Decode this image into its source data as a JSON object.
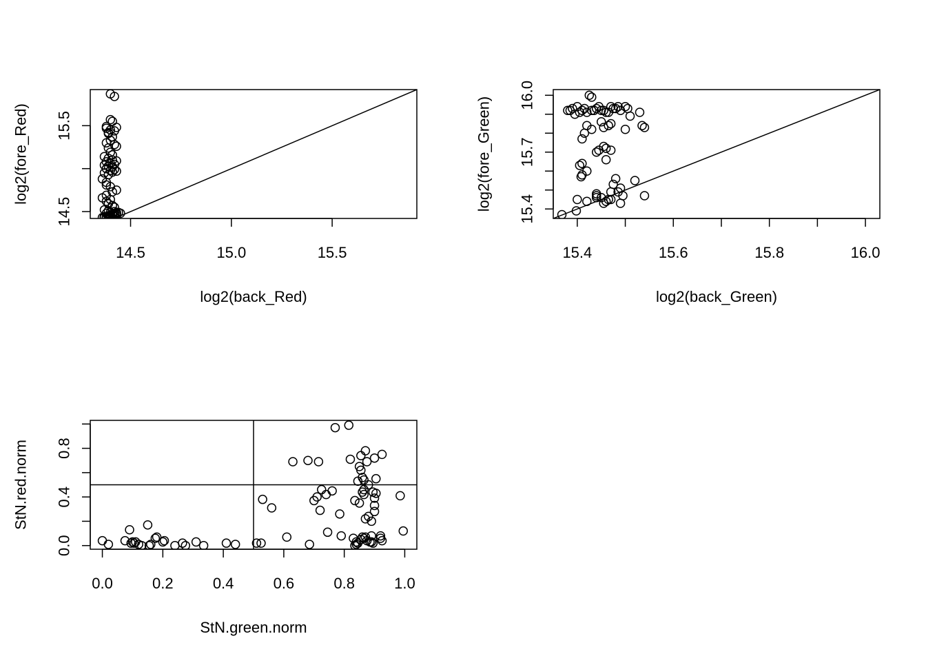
{
  "chart_data": [
    {
      "type": "scatter",
      "title": "",
      "xlabel": "log2(back_Red)",
      "ylabel": "log2(fore_Red)",
      "xlim": [
        14.3,
        15.92
      ],
      "ylim": [
        14.42,
        15.92
      ],
      "xticks": [
        14.5,
        15.0,
        15.5
      ],
      "xtick_labels": [
        "14.5",
        "15.0",
        "15.5"
      ],
      "yticks": [
        14.5,
        15.0,
        15.5
      ],
      "ytick_labels": [
        "14.5",
        "",
        "15.5"
      ],
      "lines": [
        {
          "kind": "abline",
          "intercept": 0,
          "slope": 1
        }
      ],
      "points": {
        "x": [
          14.4,
          14.42,
          14.38,
          14.4,
          14.43,
          14.41,
          14.39,
          14.4,
          14.42,
          14.38,
          14.39,
          14.41,
          14.4,
          14.38,
          14.42,
          14.43,
          14.39,
          14.4,
          14.41,
          14.37,
          14.39,
          14.41,
          14.43,
          14.38,
          14.4,
          14.42,
          14.37,
          14.39,
          14.41,
          14.38,
          14.42,
          14.4,
          14.43,
          14.41,
          14.37,
          14.39,
          14.36,
          14.38,
          14.38,
          14.4,
          14.43,
          14.41,
          14.38,
          14.36,
          14.4,
          14.38,
          14.39,
          14.41,
          14.42,
          14.37,
          14.39,
          14.4,
          14.38,
          14.41,
          14.42,
          14.45,
          14.44,
          14.43,
          14.42,
          14.39,
          14.37,
          14.38,
          14.4,
          14.36,
          14.37,
          14.39,
          14.4,
          14.41,
          14.38,
          14.42,
          14.39,
          14.43,
          14.4,
          14.37,
          14.41,
          14.39,
          14.38,
          14.4,
          14.41,
          14.43,
          14.42,
          14.38,
          14.4,
          14.37,
          14.39,
          14.42,
          14.43,
          14.39,
          14.41,
          14.38
        ],
        "y": [
          15.87,
          15.84,
          15.47,
          15.57,
          15.48,
          15.55,
          15.42,
          15.45,
          15.44,
          15.49,
          15.41,
          15.37,
          15.33,
          15.3,
          15.28,
          15.26,
          15.24,
          15.19,
          15.16,
          15.14,
          15.12,
          15.1,
          15.09,
          15.08,
          15.06,
          15.05,
          15.04,
          15.03,
          15.02,
          15.0,
          14.99,
          14.98,
          14.97,
          14.96,
          14.95,
          14.93,
          14.88,
          14.84,
          14.81,
          14.79,
          14.75,
          14.73,
          14.69,
          14.66,
          14.64,
          14.62,
          14.59,
          14.57,
          14.55,
          14.52,
          14.51,
          14.49,
          14.48,
          14.47,
          14.46,
          14.48,
          14.49,
          14.47,
          14.46,
          14.45,
          14.44,
          14.43,
          14.42,
          14.43,
          14.44,
          14.45,
          14.46,
          14.47,
          14.43,
          14.44,
          14.42,
          14.45,
          14.44,
          14.43,
          14.42,
          14.43,
          14.44,
          14.45,
          14.46,
          14.48,
          14.5,
          14.42,
          14.43,
          14.44,
          14.45,
          14.47,
          14.49,
          14.41,
          14.42,
          14.43
        ]
      }
    },
    {
      "type": "scatter",
      "title": "",
      "xlabel": "log2(back_Green)",
      "ylabel": "log2(fore_Green)",
      "xlim": [
        15.35,
        16.03
      ],
      "ylim": [
        15.35,
        16.03
      ],
      "xticks": [
        15.4,
        15.5,
        15.6,
        15.7,
        15.8,
        15.9,
        16.0
      ],
      "xtick_labels": [
        "15.4",
        "",
        "15.6",
        "",
        "15.8",
        "",
        "16.0"
      ],
      "yticks": [
        15.4,
        15.5,
        15.6,
        15.7,
        15.8,
        15.9,
        16.0
      ],
      "ytick_labels": [
        "15.4",
        "",
        "",
        "15.7",
        "",
        "",
        "16.0"
      ],
      "lines": [
        {
          "kind": "abline",
          "intercept": 0,
          "slope": 1
        }
      ],
      "points": {
        "x": [
          15.425,
          15.43,
          15.38,
          15.39,
          15.4,
          15.41,
          15.42,
          15.43,
          15.44,
          15.45,
          15.46,
          15.47,
          15.48,
          15.49,
          15.5,
          15.385,
          15.395,
          15.405,
          15.415,
          15.435,
          15.445,
          15.455,
          15.465,
          15.475,
          15.485,
          15.505,
          15.53,
          15.51,
          15.535,
          15.54,
          15.5,
          15.455,
          15.465,
          15.47,
          15.45,
          15.42,
          15.43,
          15.415,
          15.41,
          15.445,
          15.46,
          15.455,
          15.47,
          15.44,
          15.41,
          15.405,
          15.42,
          15.41,
          15.408,
          15.48,
          15.52,
          15.475,
          15.49,
          15.485,
          15.47,
          15.44,
          15.44,
          15.495,
          15.54,
          15.45,
          15.465,
          15.47,
          15.46,
          15.42,
          15.4,
          15.49,
          15.455,
          15.398,
          15.368,
          15.44,
          15.46
        ],
        "y": [
          16.0,
          15.99,
          15.92,
          15.93,
          15.94,
          15.92,
          15.91,
          15.92,
          15.93,
          15.92,
          15.91,
          15.94,
          15.93,
          15.92,
          15.94,
          15.92,
          15.9,
          15.91,
          15.93,
          15.92,
          15.94,
          15.92,
          15.91,
          15.93,
          15.94,
          15.93,
          15.91,
          15.89,
          15.84,
          15.83,
          15.82,
          15.83,
          15.84,
          15.85,
          15.86,
          15.84,
          15.82,
          15.8,
          15.77,
          15.71,
          15.72,
          15.73,
          15.71,
          15.7,
          15.64,
          15.63,
          15.6,
          15.58,
          15.57,
          15.56,
          15.55,
          15.53,
          15.51,
          15.49,
          15.49,
          15.48,
          15.46,
          15.47,
          15.47,
          15.46,
          15.45,
          15.45,
          15.44,
          15.44,
          15.45,
          15.43,
          15.43,
          15.39,
          15.37,
          15.47,
          15.66
        ]
      }
    },
    {
      "type": "scatter",
      "title": "",
      "xlabel": "StN.green.norm",
      "ylabel": "StN.red.norm",
      "xlim": [
        -0.04,
        1.04
      ],
      "ylim": [
        -0.03,
        1.03
      ],
      "xticks": [
        0.0,
        0.2,
        0.4,
        0.6,
        0.8,
        1.0
      ],
      "xtick_labels": [
        "0.0",
        "0.2",
        "0.4",
        "0.6",
        "0.8",
        "1.0"
      ],
      "yticks": [
        0.0,
        0.2,
        0.4,
        0.6,
        0.8,
        1.0
      ],
      "ytick_labels": [
        "0.0",
        "",
        "0.4",
        "",
        "0.8",
        ""
      ],
      "lines": [
        {
          "kind": "vline",
          "x": 0.5
        },
        {
          "kind": "hline",
          "y": 0.5
        }
      ],
      "points": {
        "x": [
          0.0,
          0.02,
          0.075,
          0.09,
          0.095,
          0.1,
          0.105,
          0.11,
          0.12,
          0.13,
          0.15,
          0.155,
          0.16,
          0.175,
          0.18,
          0.2,
          0.205,
          0.24,
          0.265,
          0.275,
          0.31,
          0.335,
          0.41,
          0.44,
          0.51,
          0.525,
          0.53,
          0.56,
          0.61,
          0.63,
          0.68,
          0.685,
          0.7,
          0.71,
          0.715,
          0.72,
          0.725,
          0.74,
          0.745,
          0.76,
          0.77,
          0.785,
          0.79,
          0.815,
          0.82,
          0.83,
          0.835,
          0.835,
          0.84,
          0.845,
          0.85,
          0.85,
          0.855,
          0.855,
          0.86,
          0.86,
          0.865,
          0.865,
          0.865,
          0.87,
          0.87,
          0.87,
          0.875,
          0.88,
          0.88,
          0.885,
          0.89,
          0.89,
          0.895,
          0.895,
          0.9,
          0.9,
          0.9,
          0.905,
          0.905,
          0.92,
          0.925,
          0.925,
          0.985,
          0.995,
          0.845,
          0.855,
          0.865,
          0.875,
          0.89,
          0.9,
          0.92,
          0.84,
          0.86
        ],
        "y": [
          0.04,
          0.01,
          0.04,
          0.13,
          0.02,
          0.03,
          0.02,
          0.03,
          0.01,
          0.0,
          0.17,
          0.0,
          0.01,
          0.06,
          0.07,
          0.03,
          0.04,
          0.0,
          0.02,
          0.0,
          0.03,
          0.0,
          0.02,
          0.01,
          0.02,
          0.02,
          0.38,
          0.31,
          0.07,
          0.69,
          0.7,
          0.01,
          0.37,
          0.4,
          0.69,
          0.29,
          0.46,
          0.42,
          0.11,
          0.45,
          0.97,
          0.26,
          0.08,
          0.99,
          0.71,
          0.06,
          0.37,
          0.0,
          0.01,
          0.53,
          0.65,
          0.35,
          0.62,
          0.74,
          0.56,
          0.44,
          0.54,
          0.42,
          0.46,
          0.78,
          0.22,
          0.07,
          0.69,
          0.24,
          0.5,
          0.03,
          0.2,
          0.08,
          0.02,
          0.44,
          0.33,
          0.39,
          0.28,
          0.43,
          0.55,
          0.06,
          0.75,
          0.04,
          0.41,
          0.12,
          0.02,
          0.05,
          0.06,
          0.04,
          0.03,
          0.72,
          0.08,
          0.03,
          0.07
        ]
      }
    }
  ]
}
